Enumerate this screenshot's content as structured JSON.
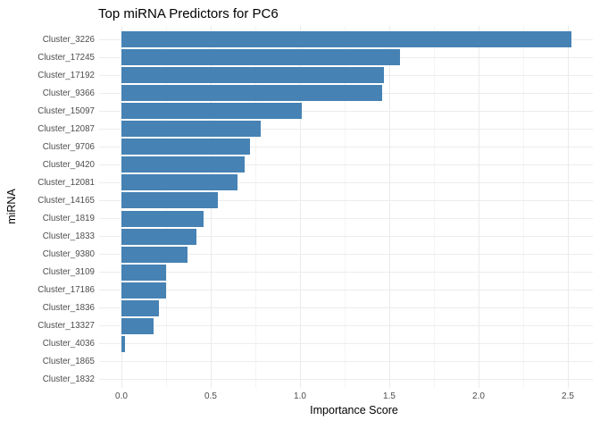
{
  "chart_data": {
    "type": "bar",
    "orientation": "horizontal",
    "title": "Top miRNA Predictors for PC6",
    "xlabel": "Importance Score",
    "ylabel": "miRNA",
    "categories": [
      "Cluster_3226",
      "Cluster_17245",
      "Cluster_17192",
      "Cluster_9366",
      "Cluster_15097",
      "Cluster_12087",
      "Cluster_9706",
      "Cluster_9420",
      "Cluster_12081",
      "Cluster_14165",
      "Cluster_1819",
      "Cluster_1833",
      "Cluster_9380",
      "Cluster_3109",
      "Cluster_17186",
      "Cluster_1836",
      "Cluster_13327",
      "Cluster_4036",
      "Cluster_1865",
      "Cluster_1832"
    ],
    "values": [
      2.52,
      1.56,
      1.47,
      1.46,
      1.01,
      0.78,
      0.72,
      0.69,
      0.65,
      0.54,
      0.46,
      0.42,
      0.37,
      0.25,
      0.25,
      0.21,
      0.18,
      0.02,
      0,
      0
    ],
    "xlim": [
      0,
      2.65
    ],
    "x_major_ticks": [
      0,
      0.5,
      1,
      1.5,
      2,
      2.5
    ],
    "x_tick_labels": [
      "0.0",
      "0.5",
      "1.0",
      "1.5",
      "2.0",
      "2.5"
    ],
    "x_minor_ticks": [
      0.25,
      0.75,
      1.25,
      1.75,
      2.25
    ],
    "grid": true,
    "legend": false,
    "bar_color": "#4682B4",
    "gridline_major_color": "#ebebeb",
    "gridline_minor_color": "#f4f4f4",
    "tick_label_color": "#4d4d4d",
    "text_color": "#000000",
    "background": "#ffffff"
  }
}
